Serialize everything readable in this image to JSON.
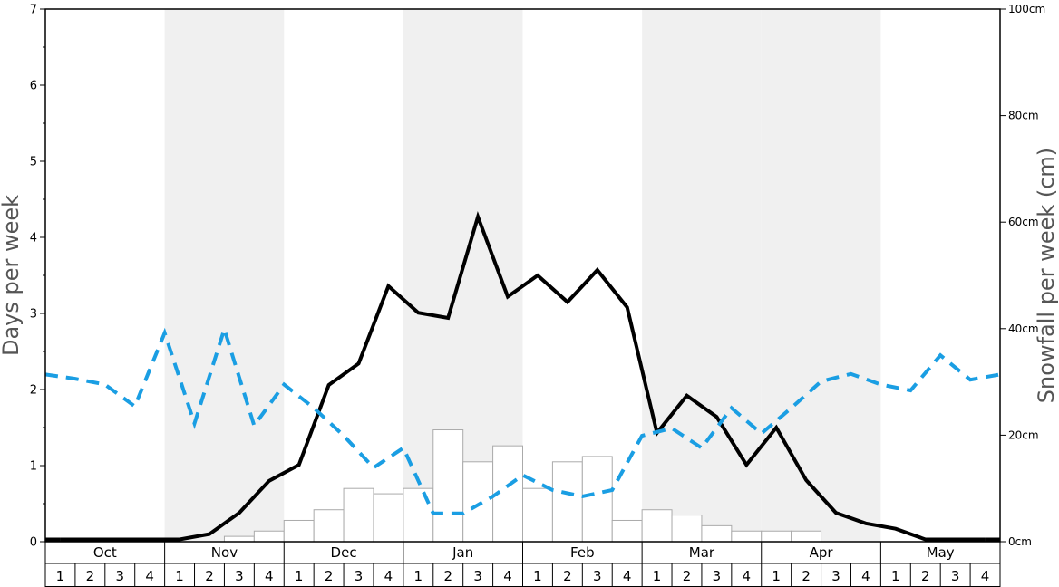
{
  "chart_data": {
    "type": "bar+line",
    "title": "",
    "xlabel": "",
    "ylabel_left": "Days per week",
    "ylabel_right": "Snowfall per week (cm)",
    "ylim_left": [
      0,
      7
    ],
    "ylim_right": [
      0,
      100
    ],
    "left_ticks": [
      "0",
      "1",
      "2",
      "3",
      "4",
      "5",
      "6",
      "7"
    ],
    "right_ticks": [
      "0cm",
      "20cm",
      "40cm",
      "60cm",
      "80cm",
      "100cm"
    ],
    "months": [
      "Oct",
      "Nov",
      "Dec",
      "Jan",
      "Feb",
      "Mar",
      "Apr",
      "May"
    ],
    "weeks": [
      "1",
      "2",
      "3",
      "4"
    ],
    "series": [
      {
        "kind": "bar",
        "axis": "left",
        "values": [
          0,
          0,
          0,
          0,
          0,
          0,
          0.07,
          0.14,
          0.28,
          0.42,
          0.7,
          0.63,
          0.7,
          1.47,
          1.05,
          1.26,
          0.7,
          1.05,
          1.12,
          0.28,
          0.42,
          0.35,
          0.21,
          0.14,
          0.14,
          0.14,
          0,
          0,
          0,
          0,
          0,
          0
        ]
      },
      {
        "kind": "line",
        "axis": "left",
        "style": "solid",
        "color": "#000000",
        "values": [
          0.03,
          0.03,
          0.03,
          0.03,
          0.03,
          0.1,
          0.38,
          0.8,
          1.01,
          2.06,
          2.34,
          3.36,
          3.01,
          2.94,
          4.27,
          3.22,
          3.5,
          3.15,
          3.57,
          3.08,
          1.43,
          1.92,
          1.64,
          1.01,
          1.5,
          0.81,
          0.38,
          0.24,
          0.17,
          0.03,
          0.03,
          0.03
        ]
      },
      {
        "kind": "line",
        "axis": "right",
        "style": "dashed",
        "color": "#1a9ee3",
        "values": [
          31.4,
          30.6,
          29.5,
          25.4,
          39.2,
          22.2,
          39.9,
          21.8,
          29.5,
          25.1,
          19.9,
          13.9,
          17.6,
          5.3,
          5.3,
          8.5,
          12.5,
          9.7,
          8.5,
          9.7,
          19.9,
          21.3,
          17.6,
          25.1,
          20.3,
          25.1,
          30.1,
          31.5,
          29.5,
          28.4,
          35.0,
          30.4,
          31.4
        ]
      }
    ],
    "colors": {
      "shade": "#f0f0f0",
      "bar_fill": "#ffffff",
      "bar_stroke": "#aaaaaa",
      "solid_line": "#000000",
      "dashed_line": "#1a9ee3",
      "axis": "#000000"
    },
    "shaded_months": [
      "Nov",
      "Jan",
      "Mar",
      "Apr"
    ],
    "grid": false,
    "legend": "none"
  }
}
